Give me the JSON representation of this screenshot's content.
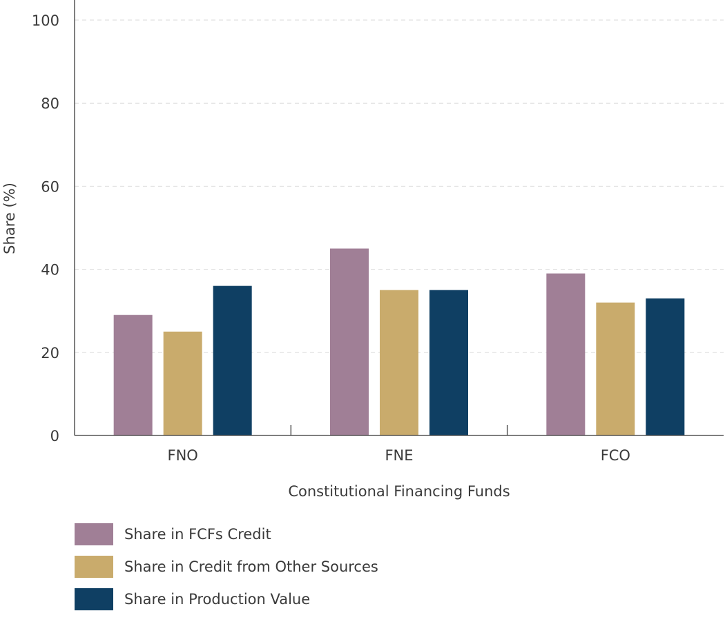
{
  "chart_data": {
    "type": "bar",
    "categories": [
      "FNO",
      "FNE",
      "FCO"
    ],
    "series": [
      {
        "name": "Share in FCFs Credit",
        "values": [
          29,
          45,
          39
        ],
        "color": "#a07f96"
      },
      {
        "name": "Share in Credit from Other Sources",
        "values": [
          25,
          35,
          32
        ],
        "color": "#c9ab6c"
      },
      {
        "name": "Share in Production Value",
        "values": [
          36,
          35,
          33
        ],
        "color": "#0f3f63"
      }
    ],
    "xlabel": "Constitutional Financing Funds",
    "ylabel": "Share (%)",
    "ylim": [
      0,
      100
    ],
    "yticks": [
      "0",
      "20",
      "40",
      "60",
      "80",
      "100"
    ],
    "grid": "horizontal dashed",
    "legend_position": "bottom-left"
  }
}
